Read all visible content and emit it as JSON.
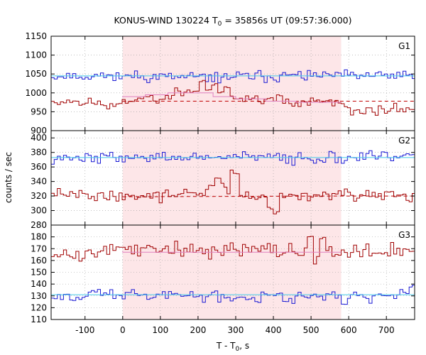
{
  "chart_data": {
    "type": "line",
    "title": {
      "prefix": "KONUS-WIND 130224 T",
      "subscript": "0",
      "suffix": " = 35856s UT (09:57:36.000)"
    },
    "xlabel": {
      "prefix": "T - T",
      "subscript": "0",
      "suffix": ", s"
    },
    "ylabel": "counts / sec",
    "xlim": [
      -190,
      775
    ],
    "xticks": [
      -100,
      0,
      100,
      200,
      300,
      400,
      500,
      600,
      700
    ],
    "shaded_interval": [
      0,
      580
    ],
    "colors": {
      "red": "#a00000",
      "blue": "#1a1ad4",
      "pink_fit": "#e080c0",
      "cyan_fit": "#40c8e8",
      "shade": "#fde6e8",
      "dash": "#c00000"
    },
    "bin_width": 8.192,
    "panels": [
      {
        "label": "G1",
        "ylim": [
          900,
          1150
        ],
        "yticks": [
          900,
          950,
          1000,
          1050,
          1100,
          1150
        ],
        "series": [
          {
            "color": "blue",
            "anchors": [
              [
                -190,
                1045
              ],
              [
                0,
                1045
              ],
              [
                200,
                1040
              ],
              [
                400,
                1045
              ],
              [
                580,
                1045
              ],
              [
                775,
                1045
              ]
            ],
            "noise": 12,
            "seed": 11
          },
          {
            "color": "red",
            "anchors": [
              [
                -190,
                975
              ],
              [
                -120,
                980
              ],
              [
                -60,
                970
              ],
              [
                -10,
                960
              ],
              [
                0,
                978
              ],
              [
                60,
                985
              ],
              [
                120,
                995
              ],
              [
                180,
                1005
              ],
              [
                230,
                1005
              ],
              [
                260,
                1000
              ],
              [
                300,
                990
              ],
              [
                360,
                985
              ],
              [
                420,
                980
              ],
              [
                470,
                975
              ],
              [
                540,
                975
              ],
              [
                580,
                970
              ],
              [
                600,
                955
              ],
              [
                660,
                950
              ],
              [
                700,
                955
              ],
              [
                775,
                960
              ]
            ],
            "noise": 12,
            "seed": 23,
            "bumps": [
              [
                215,
                1030
              ],
              [
                245,
                1025
              ],
              [
                280,
                1015
              ]
            ]
          }
        ],
        "fits": [
          {
            "color": "pink_fit",
            "points": [
              [
                0,
                988
              ],
              [
                60,
                990
              ],
              [
                120,
                995
              ],
              [
                180,
                1000
              ],
              [
                240,
                1000
              ],
              [
                300,
                990
              ],
              [
                380,
                984
              ],
              [
                460,
                978
              ],
              [
                580,
                975
              ]
            ]
          },
          {
            "color": "cyan_fit",
            "points": [
              [
                -190,
                1045
              ],
              [
                775,
                1045
              ]
            ]
          }
        ],
        "dashed": {
          "points": [
            [
              0,
              978
            ],
            [
              300,
              978
            ],
            [
              580,
              978
            ],
            [
              775,
              978
            ]
          ]
        }
      },
      {
        "label": "G2",
        "ylim": [
          280,
          410
        ],
        "yticks": [
          280,
          300,
          320,
          340,
          360,
          380,
          400
        ],
        "series": [
          {
            "color": "blue",
            "anchors": [
              [
                -190,
                373
              ],
              [
                0,
                373
              ],
              [
                200,
                373
              ],
              [
                400,
                373
              ],
              [
                580,
                373
              ],
              [
                775,
                373
              ]
            ],
            "noise": 7,
            "seed": 37
          },
          {
            "color": "red",
            "anchors": [
              [
                -190,
                322
              ],
              [
                0,
                320
              ],
              [
                100,
                322
              ],
              [
                200,
                325
              ],
              [
                240,
                330
              ],
              [
                270,
                335
              ],
              [
                300,
                325
              ],
              [
                360,
                318
              ],
              [
                420,
                320
              ],
              [
                500,
                320
              ],
              [
                580,
                322
              ],
              [
                620,
                320
              ],
              [
                700,
                320
              ],
              [
                775,
                320
              ]
            ],
            "noise": 7,
            "seed": 41,
            "bumps": [
              [
                255,
                345
              ],
              [
                295,
                355
              ],
              [
                305,
                352
              ],
              [
                395,
                302
              ],
              [
                410,
                296
              ]
            ]
          }
        ],
        "fits": [
          {
            "color": "cyan_fit",
            "points": [
              [
                -190,
                373
              ],
              [
                775,
                373
              ]
            ]
          }
        ],
        "dashed": {
          "points": [
            [
              0,
              319
            ],
            [
              580,
              320
            ],
            [
              775,
              320
            ]
          ]
        }
      },
      {
        "label": "G3",
        "ylim": [
          110,
          190
        ],
        "yticks": [
          110,
          120,
          130,
          140,
          150,
          160,
          170,
          180
        ],
        "series": [
          {
            "color": "red",
            "anchors": [
              [
                -190,
                168
              ],
              [
                0,
                169
              ],
              [
                200,
                169
              ],
              [
                400,
                168
              ],
              [
                580,
                168
              ],
              [
                775,
                168
              ]
            ],
            "noise": 6,
            "seed": 53,
            "bumps": [
              [
                -110,
                160
              ],
              [
                500,
                180
              ],
              [
                530,
                178
              ]
            ]
          },
          {
            "color": "blue",
            "anchors": [
              [
                -190,
                131
              ],
              [
                0,
                131
              ],
              [
                200,
                130
              ],
              [
                400,
                130
              ],
              [
                580,
                130
              ],
              [
                775,
                130
              ]
            ],
            "noise": 4.5,
            "seed": 67,
            "bumps": [
              [
                590,
                122
              ],
              [
                770,
                137
              ]
            ]
          }
        ],
        "fits": [
          {
            "color": "pink_fit",
            "points": [
              [
                0,
                168
              ],
              [
                580,
                167
              ]
            ]
          },
          {
            "color": "cyan_fit",
            "points": [
              [
                -190,
                131
              ],
              [
                775,
                131
              ]
            ]
          }
        ]
      }
    ]
  }
}
